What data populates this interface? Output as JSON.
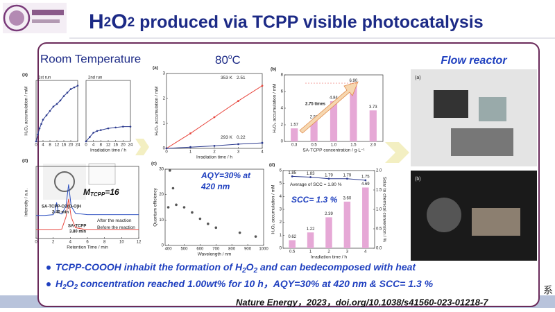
{
  "slide": {
    "title": {
      "h": "H",
      "sub1": "2",
      "o": "O",
      "sub2": "2",
      "rest": " produced via TCPP visible photocatalysis"
    },
    "room_temperature": "Room Temperature",
    "temp": {
      "num": "80",
      "deg": "o",
      "unit": "C"
    },
    "flow_reactor": "Flow reactor",
    "aqy_note": {
      "line1": "AQY=30% at",
      "line2": "420 nm"
    },
    "scc_note": "SCC= 1.3 %",
    "m_note": {
      "m": "M",
      "sub": "TCPP",
      "rest": "=16"
    },
    "bullets": [
      {
        "a": "TCPP-COOOH inhabit the formation of H",
        "s1": "2",
        "b": "O",
        "s2": "2",
        "c": " and can bedecomposed with heat"
      },
      {
        "a": "H",
        "s1": "2",
        "b": "O",
        "s2": "2",
        "c": " concentration reached 1.00wt% for 10 h，AQY=30% at 420 nm & SCC= 1.3 %"
      }
    ],
    "citation": "Nature Energy，2023，doi.org/10.1038/s41560-023-01218-7",
    "edge_fragment": "系"
  },
  "chart_data": [
    {
      "type": "line",
      "panel_label": "(a)",
      "title": "1st run",
      "ylabel": "H₂O₂ accumulation / mM",
      "color": "#2b3a8f",
      "x": [
        0,
        1,
        2,
        3,
        4,
        6,
        8,
        10,
        12,
        14,
        16,
        18,
        20,
        22,
        24
      ],
      "values": [
        0,
        0.08,
        0.15,
        0.2,
        0.25,
        0.3,
        0.35,
        0.4,
        0.43,
        0.47,
        0.52,
        0.56,
        0.6,
        0.62,
        0.64
      ],
      "xlim": [
        0,
        24
      ],
      "xticks": [
        0,
        4,
        8,
        12,
        16,
        20,
        24
      ],
      "ylim": [
        0,
        0.7
      ]
    },
    {
      "type": "line",
      "title": "2nd run",
      "xlabel": "Irradiation time / h",
      "color": "#2b3a8f",
      "x": [
        0,
        2,
        4,
        6,
        8,
        12,
        16,
        20,
        24
      ],
      "values": [
        0,
        0.05,
        0.1,
        0.12,
        0.13,
        0.15,
        0.16,
        0.17,
        0.17
      ],
      "xlim": [
        0,
        24
      ],
      "xticks": [
        0,
        4,
        8,
        12,
        16,
        20,
        24
      ],
      "ylim": [
        0,
        0.7
      ]
    },
    {
      "type": "line",
      "panel_label": "(a)",
      "xlabel": "Irradiation time / h",
      "ylabel": "H₂O₂ accumulation / mM",
      "x": [
        0,
        1,
        2,
        3,
        4
      ],
      "series": [
        {
          "name": "353 K",
          "color": "#e8453c",
          "values": [
            0,
            0.6,
            1.25,
            1.9,
            2.51
          ]
        },
        {
          "name": "293 K",
          "color": "#2b3a8f",
          "values": [
            0,
            0.05,
            0.1,
            0.17,
            0.22
          ]
        }
      ],
      "xlim": [
        0,
        4
      ],
      "xticks": [
        0,
        1,
        2,
        3,
        4
      ],
      "ylim": [
        0,
        3
      ],
      "yticks": [
        0,
        1,
        2,
        3
      ]
    },
    {
      "type": "bar",
      "panel_label": "(b)",
      "xlabel": "SA-TCPP concentration / g·L⁻¹",
      "ylabel": "H₂O₂ accumulation / mM",
      "categories": [
        "0.3",
        "0.5",
        "1.0",
        "1.5",
        "2.0"
      ],
      "values": [
        1.57,
        2.51,
        4.84,
        6.9,
        3.73
      ],
      "value_labels": [
        "1.57",
        "2.51",
        "4.84",
        "6.90",
        "3.73"
      ],
      "color": "#e6a8d6",
      "ylim": [
        0,
        8
      ],
      "yticks": [
        0,
        2,
        4,
        6,
        8
      ],
      "annotations": [
        "2.75 times"
      ]
    },
    {
      "type": "line",
      "panel_label": "(d)",
      "xlabel": "Retention Time / min",
      "ylabel": "Intensity / a.u.",
      "x": [
        0,
        1,
        2,
        2.2,
        2.4,
        2.6,
        3,
        3.5,
        3.8,
        4.1,
        4.6,
        6,
        8,
        10,
        12
      ],
      "series": [
        {
          "name": "After the reaction",
          "color": "#2b4fc0",
          "values": [
            0.32,
            0.32,
            0.33,
            0.38,
            0.5,
            0.36,
            0.34,
            0.45,
            0.75,
            0.45,
            0.35,
            0.33,
            0.33,
            0.33,
            0.33
          ]
        },
        {
          "name": "Before the reaction",
          "color": "#e8453c",
          "values": [
            0.12,
            0.12,
            0.12,
            0.12,
            0.12,
            0.12,
            0.13,
            0.3,
            0.55,
            0.3,
            0.15,
            0.12,
            0.12,
            0.12,
            0.12
          ]
        }
      ],
      "xlim": [
        0,
        12
      ],
      "xticks": [
        0,
        2,
        4,
        6,
        8,
        10,
        12
      ],
      "ylim": [
        0,
        1
      ],
      "annotations": [
        "SA-TCPP-CO(O-O)H",
        "2.40 min",
        "SA-TCPP",
        "3.80 min"
      ]
    },
    {
      "type": "scatter",
      "panel_label": "(c)",
      "xlabel": "Wavelength / nm",
      "ylabel": "Quantum efficiency",
      "color": "#555555",
      "x": [
        400,
        410,
        430,
        450,
        500,
        550,
        600,
        650,
        700,
        850,
        950
      ],
      "values": [
        15,
        29.5,
        22.5,
        16,
        15,
        13,
        10.5,
        8.5,
        7,
        5,
        3.5
      ],
      "xlim": [
        380,
        1000
      ],
      "xticks": [
        400,
        500,
        600,
        700,
        800,
        900,
        1000
      ],
      "ylim": [
        0,
        30
      ],
      "yticks": [
        0,
        10,
        20,
        30
      ]
    },
    {
      "type": "bar",
      "panel_label": "(d)",
      "xlabel": "Irradiation time / h",
      "ylabel": "H₂O₂ accumulation / mM",
      "y2label": "Solar to chemical conversion / %",
      "categories": [
        "0.5",
        "1",
        "2",
        "3",
        "4"
      ],
      "values": [
        0.62,
        1.22,
        2.39,
        3.6,
        4.69
      ],
      "value_labels": [
        "0.62",
        "1.22",
        "2.39",
        "3.60",
        "4.69"
      ],
      "color": "#e6a8d6",
      "series": [
        {
          "name": "Average of SCC = 1.80 %",
          "color": "#2b3a8f",
          "axis": "y2",
          "values": [
            1.85,
            1.83,
            1.79,
            1.79,
            1.75
          ]
        }
      ],
      "ylim": [
        0,
        6
      ],
      "yticks": [
        0,
        1,
        2,
        3,
        4,
        5,
        6
      ],
      "y2lim": [
        0,
        2
      ],
      "y2ticks": [
        {
          "value": 0,
          "label": "0.0"
        },
        {
          "value": 0.5,
          "label": "0.5"
        },
        {
          "value": 1,
          "label": "1.0"
        },
        {
          "value": 1.5,
          "label": "1.5"
        },
        {
          "value": 2,
          "label": "2.0"
        }
      ]
    }
  ]
}
